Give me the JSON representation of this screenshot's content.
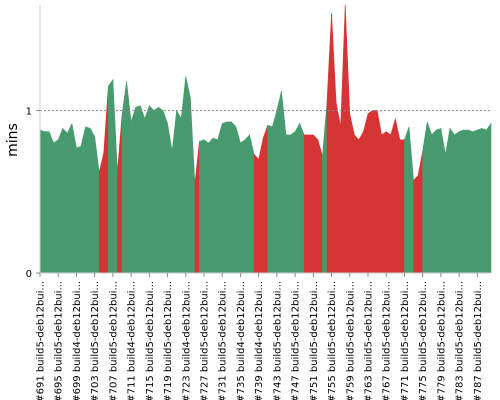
{
  "chart_data": {
    "type": "area",
    "title": "",
    "xlabel": "",
    "ylabel": "mins",
    "ylim": [
      0,
      1.65
    ],
    "yticks": [
      0,
      1
    ],
    "ytick_labels": [
      "0",
      "1"
    ],
    "reference_line": {
      "y": 1,
      "style": "dotted"
    },
    "grid": false,
    "colors": {
      "success": "#479b6e",
      "failure": "#d63535"
    },
    "x_tick_labels": [
      "#691 build5-deb12bui...",
      "#695 build5-deb12bui...",
      "#699 build4-deb12bui...",
      "#703 build5-deb12bui...",
      "#707 build5-deb12bui...",
      "#711 build4-deb12bui...",
      "#715 build5-deb12bui...",
      "#719 build5-deb12bui...",
      "#723 build4-deb12bui...",
      "#727 build5-deb12bui...",
      "#731 build5-deb12bui...",
      "#735 build4-deb12bui...",
      "#739 build4-deb12bui...",
      "#743 build5-deb12bui...",
      "#747 build5-deb12bui...",
      "#751 build5-deb12bui...",
      "#755 build5-deb12bui...",
      "#759 build5-deb12bui...",
      "#763 build5-deb12bui...",
      "#767 build5-deb12bui...",
      "#771 build5-deb12bui...",
      "#775 build5-deb12bui...",
      "#779 build5-deb12bui...",
      "#783 build5-deb12bui...",
      "#787 build5-deb12bui..."
    ],
    "x_first_build": 691,
    "values": [
      0.88,
      0.87,
      0.87,
      0.8,
      0.82,
      0.89,
      0.86,
      0.92,
      0.77,
      0.78,
      0.9,
      0.89,
      0.84,
      0.62,
      0.74,
      1.15,
      1.19,
      0.62,
      0.97,
      1.18,
      0.93,
      1.02,
      1.03,
      0.95,
      1.03,
      1.0,
      1.02,
      1.0,
      0.92,
      0.75,
      1.0,
      0.95,
      1.21,
      1.08,
      0.55,
      0.81,
      0.82,
      0.8,
      0.83,
      0.82,
      0.92,
      0.93,
      0.93,
      0.9,
      0.8,
      0.82,
      0.85,
      0.73,
      0.7,
      0.83,
      0.91,
      0.9,
      1.0,
      1.12,
      0.85,
      0.85,
      0.87,
      0.92,
      0.85,
      0.85,
      0.85,
      0.82,
      0.72,
      1.05,
      1.6,
      1.05,
      0.9,
      1.65,
      0.98,
      0.85,
      0.82,
      0.87,
      0.98,
      1.0,
      1.0,
      0.85,
      0.87,
      0.85,
      0.95,
      0.82,
      0.82,
      0.9,
      0.57,
      0.6,
      0.75,
      0.93,
      0.85,
      0.88,
      0.89,
      0.73,
      0.89,
      0.85,
      0.87,
      0.88,
      0.88,
      0.87,
      0.88,
      0.89,
      0.88,
      0.92
    ],
    "status": [
      "success",
      "success",
      "success",
      "success",
      "success",
      "success",
      "success",
      "success",
      "success",
      "success",
      "success",
      "success",
      "success",
      "failure",
      "failure",
      "success",
      "success",
      "failure",
      "success",
      "success",
      "success",
      "success",
      "success",
      "success",
      "success",
      "success",
      "success",
      "success",
      "success",
      "success",
      "success",
      "success",
      "success",
      "success",
      "failure",
      "success",
      "success",
      "success",
      "success",
      "success",
      "success",
      "success",
      "success",
      "success",
      "success",
      "success",
      "success",
      "failure",
      "failure",
      "failure",
      "success",
      "success",
      "success",
      "success",
      "success",
      "success",
      "success",
      "success",
      "failure",
      "failure",
      "failure",
      "failure",
      "success",
      "failure",
      "failure",
      "failure",
      "failure",
      "failure",
      "failure",
      "failure",
      "failure",
      "failure",
      "failure",
      "failure",
      "failure",
      "failure",
      "failure",
      "failure",
      "failure",
      "failure",
      "success",
      "success",
      "failure",
      "failure",
      "success",
      "success",
      "success",
      "success",
      "success",
      "success",
      "success",
      "success",
      "success",
      "success",
      "success",
      "success",
      "success",
      "success",
      "success",
      "success"
    ]
  }
}
